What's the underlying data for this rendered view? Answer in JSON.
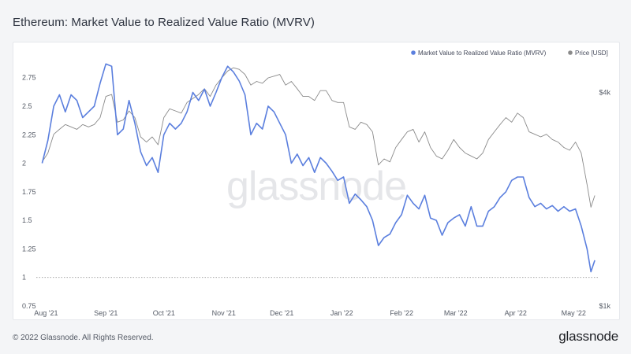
{
  "header": {
    "title": "Ethereum: Market Value to Realized Value Ratio (MVRV)"
  },
  "footer": {
    "copyright": "© 2022 Glassnode. All Rights Reserved.",
    "logo": "glassnode"
  },
  "watermark": "glassnode",
  "colors": {
    "mvrv": "#5b7fde",
    "price": "#8a8a8a",
    "baseline": "#9a9a9a"
  },
  "chart_data": {
    "type": "line",
    "title": "Ethereum: Market Value to Realized Value Ratio (MVRV)",
    "x_labels": [
      "Aug '21",
      "Sep '21",
      "Oct '21",
      "Nov '21",
      "Dec '21",
      "Jan '22",
      "Feb '22",
      "Mar '22",
      "Apr '22",
      "May '22"
    ],
    "y_left": {
      "ticks": [
        "0.75",
        "1",
        "1.25",
        "1.5",
        "1.75",
        "2",
        "2.25",
        "2.5",
        "2.75"
      ],
      "ylim": [
        0.75,
        2.92
      ]
    },
    "y_right": {
      "ticks": [
        "$1k",
        "$4k"
      ],
      "scale": "log"
    },
    "legend": {
      "placement": "top-right",
      "entries": [
        "Market Value to Realized Value Ratio (MVRV)",
        "Price [USD]"
      ]
    },
    "reference_line": {
      "value": 1,
      "style": "dotted"
    },
    "grid": false,
    "series": [
      {
        "name": "Market Value to Realized Value Ratio (MVRV)",
        "axis": "left",
        "x": [
          "2021-08-01",
          "2021-08-04",
          "2021-08-07",
          "2021-08-10",
          "2021-08-13",
          "2021-08-16",
          "2021-08-19",
          "2021-08-22",
          "2021-08-25",
          "2021-08-28",
          "2021-08-31",
          "2021-09-03",
          "2021-09-06",
          "2021-09-09",
          "2021-09-12",
          "2021-09-15",
          "2021-09-18",
          "2021-09-21",
          "2021-09-24",
          "2021-09-27",
          "2021-09-30",
          "2021-10-03",
          "2021-10-06",
          "2021-10-09",
          "2021-10-12",
          "2021-10-15",
          "2021-10-18",
          "2021-10-21",
          "2021-10-24",
          "2021-10-27",
          "2021-10-30",
          "2021-11-02",
          "2021-11-05",
          "2021-11-08",
          "2021-11-11",
          "2021-11-14",
          "2021-11-17",
          "2021-11-20",
          "2021-11-23",
          "2021-11-26",
          "2021-11-29",
          "2021-12-02",
          "2021-12-05",
          "2021-12-08",
          "2021-12-11",
          "2021-12-14",
          "2021-12-17",
          "2021-12-20",
          "2021-12-23",
          "2021-12-26",
          "2021-12-29",
          "2022-01-01",
          "2022-01-04",
          "2022-01-07",
          "2022-01-10",
          "2022-01-13",
          "2022-01-16",
          "2022-01-19",
          "2022-01-22",
          "2022-01-25",
          "2022-01-28",
          "2022-01-31",
          "2022-02-03",
          "2022-02-06",
          "2022-02-09",
          "2022-02-12",
          "2022-02-15",
          "2022-02-18",
          "2022-02-21",
          "2022-02-24",
          "2022-02-27",
          "2022-03-02",
          "2022-03-05",
          "2022-03-08",
          "2022-03-11",
          "2022-03-14",
          "2022-03-17",
          "2022-03-20",
          "2022-03-23",
          "2022-03-26",
          "2022-03-29",
          "2022-04-01",
          "2022-04-04",
          "2022-04-07",
          "2022-04-10",
          "2022-04-13",
          "2022-04-16",
          "2022-04-19",
          "2022-04-22",
          "2022-04-25",
          "2022-04-28",
          "2022-05-01",
          "2022-05-04",
          "2022-05-07",
          "2022-05-10",
          "2022-05-12",
          "2022-05-14"
        ],
        "values": [
          2.0,
          2.2,
          2.5,
          2.6,
          2.45,
          2.6,
          2.55,
          2.4,
          2.45,
          2.5,
          2.7,
          2.87,
          2.85,
          2.25,
          2.3,
          2.55,
          2.35,
          2.1,
          1.98,
          2.05,
          1.92,
          2.25,
          2.35,
          2.3,
          2.35,
          2.45,
          2.62,
          2.55,
          2.65,
          2.5,
          2.62,
          2.75,
          2.85,
          2.8,
          2.72,
          2.6,
          2.25,
          2.35,
          2.3,
          2.5,
          2.45,
          2.35,
          2.25,
          2.0,
          2.08,
          1.98,
          2.05,
          1.92,
          2.05,
          2.0,
          1.93,
          1.85,
          1.88,
          1.65,
          1.73,
          1.68,
          1.62,
          1.5,
          1.28,
          1.35,
          1.38,
          1.48,
          1.55,
          1.72,
          1.65,
          1.6,
          1.72,
          1.52,
          1.5,
          1.37,
          1.48,
          1.52,
          1.55,
          1.45,
          1.62,
          1.45,
          1.45,
          1.58,
          1.62,
          1.7,
          1.75,
          1.85,
          1.88,
          1.88,
          1.7,
          1.62,
          1.65,
          1.6,
          1.63,
          1.58,
          1.62,
          1.58,
          1.6,
          1.45,
          1.25,
          1.05,
          1.15
        ]
      },
      {
        "name": "Price [USD]",
        "axis": "right",
        "x": [
          "2021-08-01",
          "2021-08-04",
          "2021-08-07",
          "2021-08-10",
          "2021-08-13",
          "2021-08-16",
          "2021-08-19",
          "2021-08-22",
          "2021-08-25",
          "2021-08-28",
          "2021-08-31",
          "2021-09-03",
          "2021-09-06",
          "2021-09-09",
          "2021-09-12",
          "2021-09-15",
          "2021-09-18",
          "2021-09-21",
          "2021-09-24",
          "2021-09-27",
          "2021-09-30",
          "2021-10-03",
          "2021-10-06",
          "2021-10-09",
          "2021-10-12",
          "2021-10-15",
          "2021-10-18",
          "2021-10-21",
          "2021-10-24",
          "2021-10-27",
          "2021-10-30",
          "2021-11-02",
          "2021-11-05",
          "2021-11-08",
          "2021-11-11",
          "2021-11-14",
          "2021-11-17",
          "2021-11-20",
          "2021-11-23",
          "2021-11-26",
          "2021-11-29",
          "2021-12-02",
          "2021-12-05",
          "2021-12-08",
          "2021-12-11",
          "2021-12-14",
          "2021-12-17",
          "2021-12-20",
          "2021-12-23",
          "2021-12-26",
          "2021-12-29",
          "2022-01-01",
          "2022-01-04",
          "2022-01-07",
          "2022-01-10",
          "2022-01-13",
          "2022-01-16",
          "2022-01-19",
          "2022-01-22",
          "2022-01-25",
          "2022-01-28",
          "2022-01-31",
          "2022-02-03",
          "2022-02-06",
          "2022-02-09",
          "2022-02-12",
          "2022-02-15",
          "2022-02-18",
          "2022-02-21",
          "2022-02-24",
          "2022-02-27",
          "2022-03-02",
          "2022-03-05",
          "2022-03-08",
          "2022-03-11",
          "2022-03-14",
          "2022-03-17",
          "2022-03-20",
          "2022-03-23",
          "2022-03-26",
          "2022-03-29",
          "2022-04-01",
          "2022-04-04",
          "2022-04-07",
          "2022-04-10",
          "2022-04-13",
          "2022-04-16",
          "2022-04-19",
          "2022-04-22",
          "2022-04-25",
          "2022-04-28",
          "2022-05-01",
          "2022-05-04",
          "2022-05-07",
          "2022-05-10",
          "2022-05-12",
          "2022-05-14"
        ],
        "values": [
          2550,
          2700,
          3050,
          3150,
          3250,
          3200,
          3150,
          3250,
          3200,
          3250,
          3400,
          3900,
          3950,
          3300,
          3350,
          3550,
          3400,
          3000,
          2900,
          3000,
          2850,
          3400,
          3600,
          3550,
          3500,
          3750,
          3850,
          3950,
          4100,
          3900,
          4200,
          4400,
          4600,
          4700,
          4650,
          4500,
          4200,
          4300,
          4250,
          4400,
          4450,
          4500,
          4200,
          4300,
          4100,
          3900,
          3900,
          3800,
          4050,
          4050,
          3800,
          3750,
          3750,
          3200,
          3150,
          3300,
          3250,
          3100,
          2500,
          2600,
          2550,
          2800,
          2950,
          3100,
          3150,
          2900,
          3100,
          2800,
          2650,
          2600,
          2750,
          2950,
          2800,
          2700,
          2650,
          2600,
          2700,
          2950,
          3100,
          3250,
          3400,
          3300,
          3500,
          3400,
          3100,
          3050,
          3000,
          3050,
          2950,
          2900,
          2800,
          2750,
          2900,
          2700,
          2200,
          1900,
          2050
        ]
      }
    ]
  }
}
